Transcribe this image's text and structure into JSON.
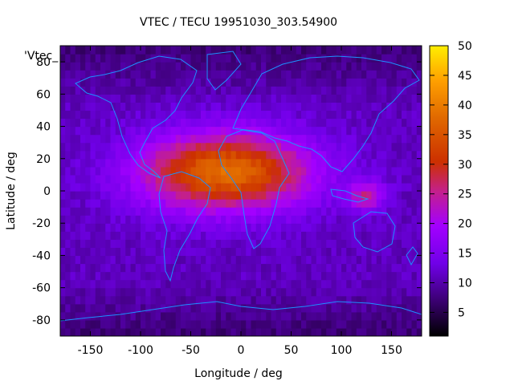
{
  "chart_data": {
    "type": "heatmap",
    "title": "VTEC / TECU 19951030_303.54900",
    "xlabel": "Longitude / deg",
    "ylabel": "Latitude / deg",
    "xlim": [
      -180,
      180
    ],
    "ylim": [
      -90,
      90
    ],
    "x_ticks": [
      -150,
      -100,
      -50,
      0,
      50,
      100,
      150
    ],
    "y_ticks": [
      -80,
      -60,
      -40,
      -20,
      0,
      20,
      40,
      60,
      80
    ],
    "x_tick_labels": [
      "-150",
      "-100",
      "-50",
      "0",
      "50",
      "100",
      "150"
    ],
    "y_tick_labels": [
      "-80",
      "-60",
      "-40",
      "-20",
      "0",
      "20",
      "40",
      "60",
      "80"
    ],
    "colorbar": {
      "range": [
        1,
        50
      ],
      "ticks": [
        5,
        10,
        15,
        20,
        25,
        30,
        35,
        40,
        45,
        50
      ],
      "tick_labels": [
        "5",
        "10",
        "15",
        "20",
        "25",
        "30",
        "35",
        "40",
        "45",
        "50"
      ],
      "colormap": "black-purple-red-orange-yellow"
    },
    "series_key": "'Vtec_",
    "overlay": "coastlines",
    "peak": {
      "lon": -15,
      "lat": 12,
      "value": 38
    },
    "background_value": 11,
    "secondary_maxima": [
      {
        "lon": 125,
        "lat": -3,
        "value": 26
      }
    ]
  },
  "colors": {
    "coastline": "#1e90ff",
    "frame": "#000000"
  }
}
